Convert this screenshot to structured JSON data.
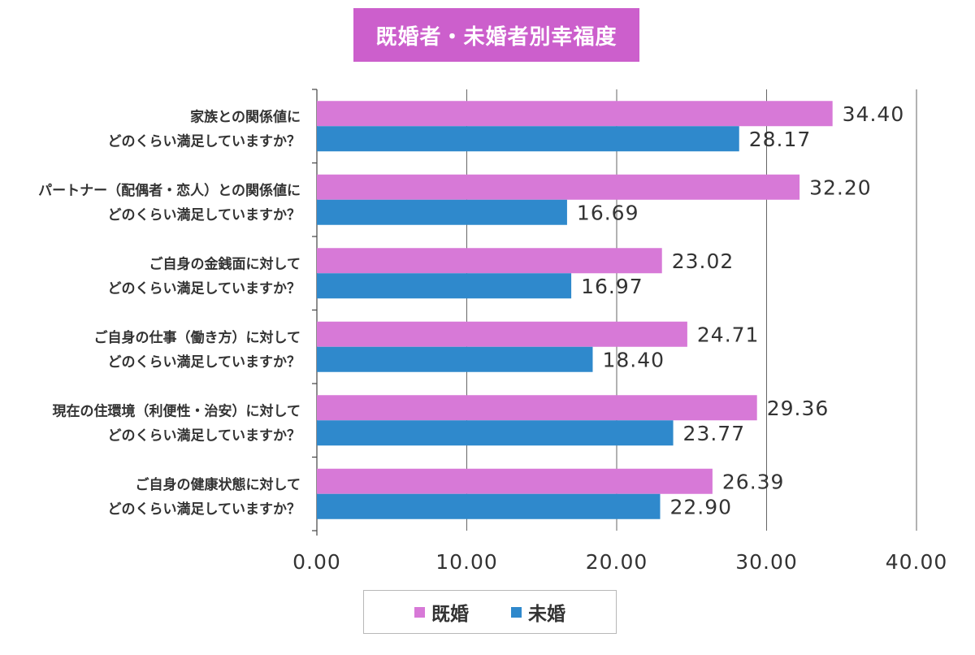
{
  "colors": {
    "married": "#d779d7",
    "unmarried": "#2f89cc",
    "title_bg": "#cc5fcc",
    "grid": "#666666",
    "text": "#333333"
  },
  "chart_data": {
    "type": "bar",
    "orientation": "horizontal",
    "title": "既婚者・未婚者別幸福度",
    "xlim": [
      0,
      40
    ],
    "xticks": [
      "0.00",
      "10.00",
      "20.00",
      "30.00",
      "40.00"
    ],
    "xtick_values": [
      0,
      10,
      20,
      30,
      40
    ],
    "grid": true,
    "legend_position": "bottom",
    "categories": [
      [
        "家族との関係値に",
        "どのくらい満足していますか？"
      ],
      [
        "パートナー（配偶者・恋人）との関係値に",
        "どのくらい満足していますか？"
      ],
      [
        "ご自身の金銭面に対して",
        "どのくらい満足していますか？"
      ],
      [
        "ご自身の仕事（働き方）に対して",
        "どのくらい満足していますか？"
      ],
      [
        "現在の住環境（利便性・治安）に対して",
        "どのくらい満足していますか？"
      ],
      [
        "ご自身の健康状態に対して",
        "どのくらい満足していますか？"
      ]
    ],
    "series": [
      {
        "name": "既婚",
        "color": "#d779d7",
        "values": [
          34.4,
          32.2,
          23.02,
          24.71,
          29.36,
          26.39
        ]
      },
      {
        "name": "未婚",
        "color": "#2f89cc",
        "values": [
          28.17,
          16.69,
          16.97,
          18.4,
          23.77,
          22.9
        ]
      }
    ]
  }
}
